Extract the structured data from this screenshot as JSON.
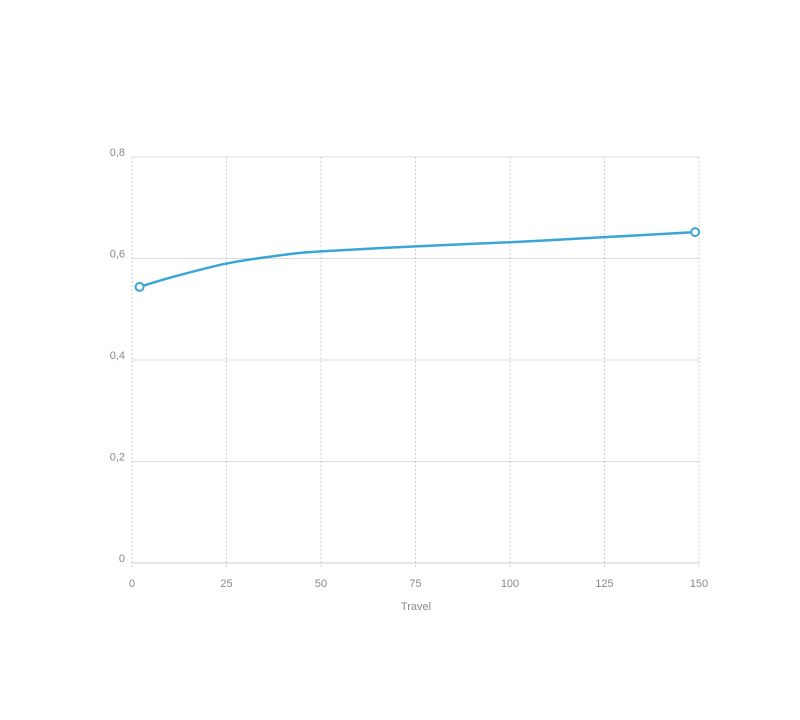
{
  "chart_data": {
    "type": "line",
    "x_label": "Travel",
    "x": [
      2,
      10,
      25,
      40,
      50,
      75,
      100,
      125,
      149
    ],
    "values": [
      0.544,
      0.562,
      0.59,
      0.607,
      0.614,
      0.624,
      0.632,
      0.642,
      0.652
    ],
    "color": "#3aa6d8",
    "markers": "ends",
    "smooth": true,
    "xlim": [
      0,
      150
    ],
    "xticks": [
      0,
      25,
      50,
      75,
      100,
      125,
      150
    ],
    "ylim": [
      0,
      0.8
    ],
    "yticks": [
      0,
      {
        "value": 0.2,
        "label": "0,2"
      },
      {
        "value": 0.4,
        "label": "0,4"
      },
      {
        "value": 0.6,
        "label": "0,6"
      },
      {
        "value": 0.8,
        "label": "0,8"
      }
    ],
    "grid": true
  }
}
